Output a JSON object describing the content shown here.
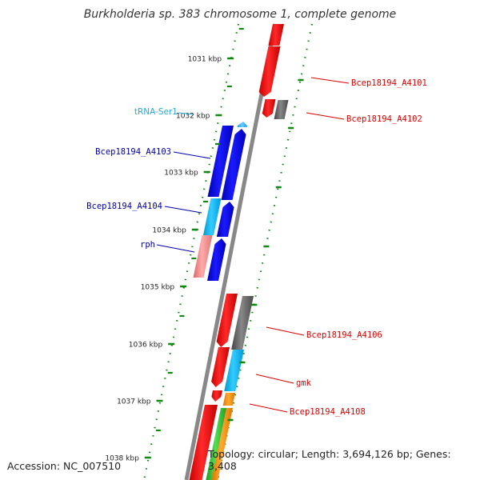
{
  "title": "Burkholderia sp. 383 chromosome 1, complete genome",
  "accession": "Accession: NC_007510",
  "topology": "Topology: circular; Length: 3,694,126 bp; Genes: 3,408",
  "colors": {
    "backbone": "#888888",
    "forward_label": "#dd0000",
    "reverse_label": "#0000aa",
    "trna_label": "#22aadd",
    "kbp_tick": "#118811"
  },
  "kbp_ticks": [
    {
      "label": "1031 kbp",
      "kbp": 1031
    },
    {
      "label": "1032 kbp",
      "kbp": 1032
    },
    {
      "label": "1033 kbp",
      "kbp": 1033
    },
    {
      "label": "1034 kbp",
      "kbp": 1034
    },
    {
      "label": "1035 kbp",
      "kbp": 1035
    },
    {
      "label": "1036 kbp",
      "kbp": 1036
    },
    {
      "label": "1037 kbp",
      "kbp": 1037
    },
    {
      "label": "1038 kbp",
      "kbp": 1038
    }
  ],
  "gene_labels": [
    {
      "text": "Bcep18194_A4101",
      "strand": "forward"
    },
    {
      "text": "Bcep18194_A4102",
      "strand": "forward"
    },
    {
      "text": "tRNA-Ser1",
      "strand": "trna"
    },
    {
      "text": "Bcep18194_A4103",
      "strand": "reverse"
    },
    {
      "text": "Bcep18194_A4104",
      "strand": "reverse"
    },
    {
      "text": "rph",
      "strand": "reverse"
    },
    {
      "text": "Bcep18194_A4106",
      "strand": "forward"
    },
    {
      "text": "gmk",
      "strand": "forward"
    },
    {
      "text": "Bcep18194_A4108",
      "strand": "forward"
    }
  ]
}
